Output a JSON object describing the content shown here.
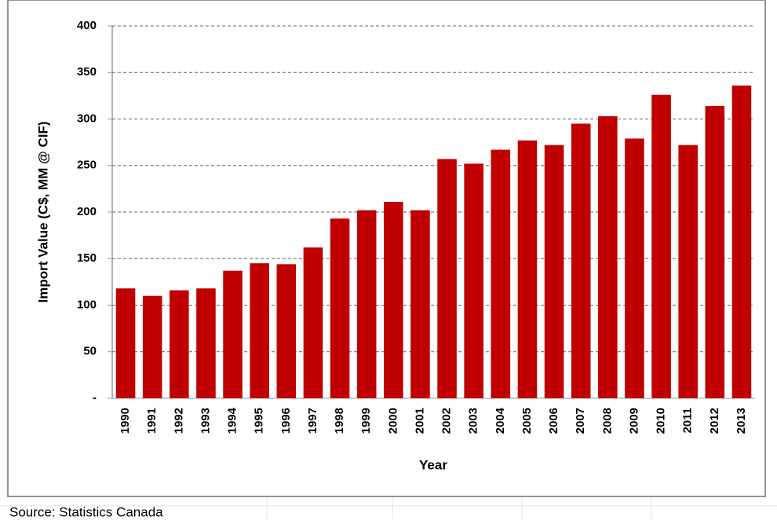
{
  "chart_data": {
    "type": "bar",
    "y_label": "Import Value (C$, MM @ CIF)",
    "x_label": "Year",
    "source": "Source: Statistics Canada",
    "categories": [
      "1990",
      "1991",
      "1992",
      "1993",
      "1994",
      "1995",
      "1996",
      "1997",
      "1998",
      "1999",
      "2000",
      "2001",
      "2002",
      "2003",
      "2004",
      "2005",
      "2006",
      "2007",
      "2008",
      "2009",
      "2010",
      "2011",
      "2012",
      "2013"
    ],
    "values": [
      118,
      110,
      116,
      118,
      137,
      145,
      144,
      162,
      193,
      202,
      211,
      202,
      257,
      252,
      267,
      277,
      272,
      295,
      303,
      279,
      326,
      272,
      314,
      336
    ],
    "color": "#c00000",
    "ylim": [
      0,
      400
    ],
    "yticks": [
      {
        "value": 0,
        "label": "-"
      },
      50,
      100,
      150,
      200,
      250,
      300,
      350,
      400
    ],
    "grid": true
  }
}
